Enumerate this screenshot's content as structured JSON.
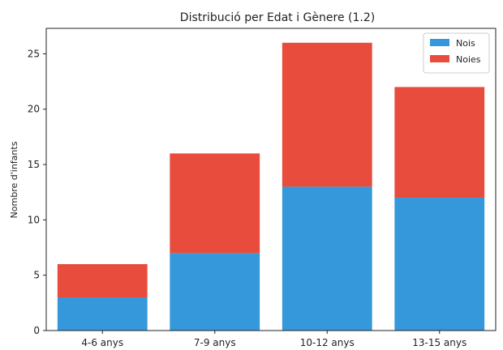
{
  "chart_data": {
    "type": "bar",
    "stacked": true,
    "title": "Distribució per Edat i Gènere (1.2)",
    "xlabel": "",
    "ylabel": "Nombre d'infants",
    "categories": [
      "4-6 anys",
      "7-9 anys",
      "10-12 anys",
      "13-15 anys"
    ],
    "series": [
      {
        "name": "Nois",
        "values": [
          3,
          7,
          13,
          12
        ],
        "color": "#3498db"
      },
      {
        "name": "Noies",
        "values": [
          3,
          9,
          13,
          10
        ],
        "color": "#e74c3c"
      }
    ],
    "ylim": [
      0,
      27.3
    ],
    "yticks": [
      0,
      5,
      10,
      15,
      20,
      25
    ],
    "grid": false,
    "legend_position": "top-right"
  }
}
